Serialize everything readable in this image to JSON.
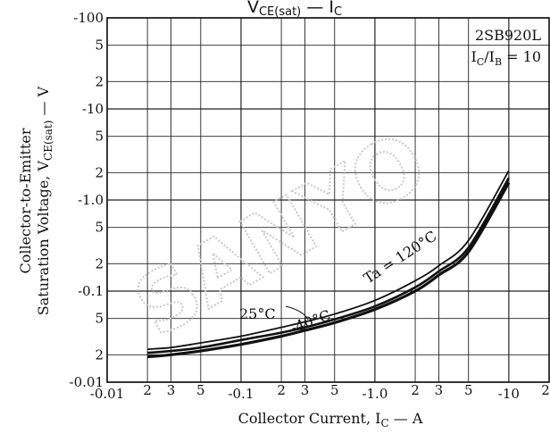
{
  "chart_data": {
    "type": "line",
    "title": "V_CE(sat) — I_C",
    "part_number": "2SB920L",
    "condition": "I_C/I_B = 10",
    "x_axis": {
      "label": "Collector Current, I_C — A",
      "scale": "log",
      "range": [
        -0.01,
        -20
      ],
      "major_ticks": [
        "-0.01",
        "-0.1",
        "-1.0",
        "-10"
      ],
      "minor_ticks": [
        "2",
        "3",
        "5"
      ]
    },
    "y_axis": {
      "label": "Collector-to-Emitter Saturation Voltage, V_CE(sat) — V",
      "scale": "log",
      "range": [
        -0.01,
        -100
      ],
      "major_ticks": [
        "-100",
        "-10",
        "-1.0",
        "-0.1",
        "-0.01"
      ],
      "minor_ticks": [
        "5",
        "2"
      ]
    },
    "grid": true,
    "series": [
      {
        "name": "Ta = 120°C",
        "x": [
          -0.02,
          -0.03,
          -0.05,
          -0.1,
          -0.2,
          -0.3,
          -0.5,
          -1,
          -2,
          -3,
          -5,
          -10
        ],
        "y": [
          -0.023,
          -0.024,
          -0.027,
          -0.032,
          -0.04,
          -0.046,
          -0.056,
          -0.079,
          -0.13,
          -0.19,
          -0.36,
          -2.1
        ]
      },
      {
        "name": "25°C",
        "x": [
          -0.02,
          -0.03,
          -0.05,
          -0.1,
          -0.2,
          -0.3,
          -0.5,
          -1,
          -2,
          -3,
          -5,
          -10
        ],
        "y": [
          -0.021,
          -0.022,
          -0.024,
          -0.029,
          -0.035,
          -0.04,
          -0.049,
          -0.068,
          -0.11,
          -0.165,
          -0.3,
          -1.75
        ]
      },
      {
        "name": "-40°C",
        "x": [
          -0.02,
          -0.03,
          -0.05,
          -0.1,
          -0.2,
          -0.3,
          -0.5,
          -1,
          -2,
          -3,
          -5,
          -10
        ],
        "y": [
          -0.019,
          -0.02,
          -0.022,
          -0.026,
          -0.032,
          -0.037,
          -0.045,
          -0.063,
          -0.1,
          -0.15,
          -0.27,
          -1.55
        ]
      }
    ],
    "annotations": [
      "Ta = 120°C",
      "25°C",
      "-40°C"
    ],
    "watermark": "SANYO"
  }
}
